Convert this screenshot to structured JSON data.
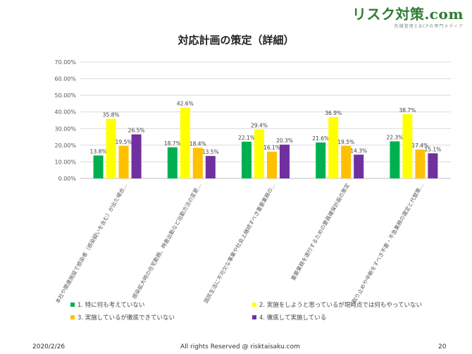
{
  "logo": {
    "main": "リスク対策.com",
    "sub": "危機管理とBCPの専門メディア"
  },
  "footer": {
    "date": "2020/2/26",
    "copyright": "All rights Reserved @ risktaisaku.com",
    "page": "20"
  },
  "colors": {
    "s1": "#00b050",
    "s2": "#ffff00",
    "s3": "#ffc000",
    "s4": "#7030a0"
  },
  "chart_data": {
    "type": "bar",
    "title": "対応計画の策定（詳細）",
    "categories": [
      "本社や関連施設で感染者（感染疑いを含む）が出た場合…",
      "感染拡大時の在宅勤務、時差出勤など出勤方法の変更…",
      "国民生活に不可欠な事業や社会上継続すべき重要業務の…",
      "重要業務を遂行するための要員確保計画の策定",
      "取り止めや中断をすべき不要・不急業務の選定と代替策…"
    ],
    "series": [
      {
        "name": "1. 特に何も考えていない",
        "values": [
          13.8,
          18.7,
          22.1,
          21.6,
          22.3
        ],
        "labels": [
          "13.8%",
          "18.7%",
          "22.1%",
          "21.6%",
          "22.3%"
        ]
      },
      {
        "name": "2. 実施をしようと思っているが現時点では何もやっていない",
        "values": [
          35.8,
          42.6,
          29.4,
          36.9,
          38.7
        ],
        "labels": [
          "35.8%",
          "42.6%",
          "29.4%",
          "36.9%",
          "38.7%"
        ]
      },
      {
        "name": "3. 実施しているが徹底できていない",
        "values": [
          19.5,
          18.4,
          16.1,
          19.5,
          17.4
        ],
        "labels": [
          "19.5%",
          "18.4%",
          "16.1%",
          "19.5%",
          "17.4%"
        ]
      },
      {
        "name": "4. 徹底して実施している",
        "values": [
          26.5,
          13.5,
          20.3,
          14.3,
          15.1
        ],
        "labels": [
          "26.5%",
          "13.5%",
          "20.3%",
          "14.3%",
          "15.1%"
        ]
      }
    ],
    "yticks": [
      "0.00%",
      "10.00%",
      "20.00%",
      "30.00%",
      "40.00%",
      "50.00%",
      "60.00%",
      "70.00%"
    ],
    "ylim": [
      0,
      70
    ],
    "grid": true,
    "legend_position": "bottom"
  }
}
